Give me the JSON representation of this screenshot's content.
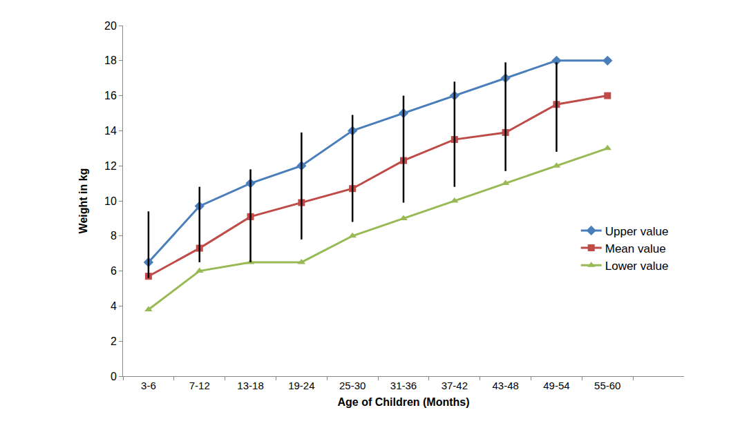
{
  "chart_data": {
    "type": "line",
    "x_label": "Age of Children (Months)",
    "y_label": "Weight in kg",
    "categories": [
      "3-6",
      "7-12",
      "13-18",
      "19-24",
      "25-30",
      "31-36",
      "37-42",
      "43-48",
      "49-54",
      "55-60"
    ],
    "series": [
      {
        "name": "Upper value",
        "color": "#4a7ebb",
        "marker": "diamond",
        "values": [
          6.5,
          9.7,
          11,
          12,
          14,
          15,
          16,
          17,
          18,
          18
        ]
      },
      {
        "name": "Mean value",
        "color": "#be4b48",
        "marker": "square",
        "values": [
          5.7,
          7.3,
          9.1,
          9.9,
          10.7,
          12.3,
          13.5,
          13.9,
          15.5,
          16
        ]
      },
      {
        "name": "Lower value",
        "color": "#98b954",
        "marker": "triangle-up",
        "values": [
          3.8,
          6,
          6.5,
          6.5,
          8,
          9,
          10,
          11,
          12,
          13
        ]
      }
    ],
    "ranges": [
      [
        5.6,
        9.4
      ],
      [
        6.5,
        10.8
      ],
      [
        6.5,
        11.8
      ],
      [
        7.8,
        13.9
      ],
      [
        8.8,
        14.9
      ],
      [
        9.9,
        16
      ],
      [
        10.8,
        16.8
      ],
      [
        11.7,
        17.9
      ],
      [
        12.8,
        17.9
      ],
      null
    ],
    "ylim": [
      0,
      20
    ],
    "yticks": [
      0,
      2,
      4,
      6,
      8,
      10,
      12,
      14,
      16,
      18,
      20
    ],
    "grid": false,
    "legend": "right"
  }
}
